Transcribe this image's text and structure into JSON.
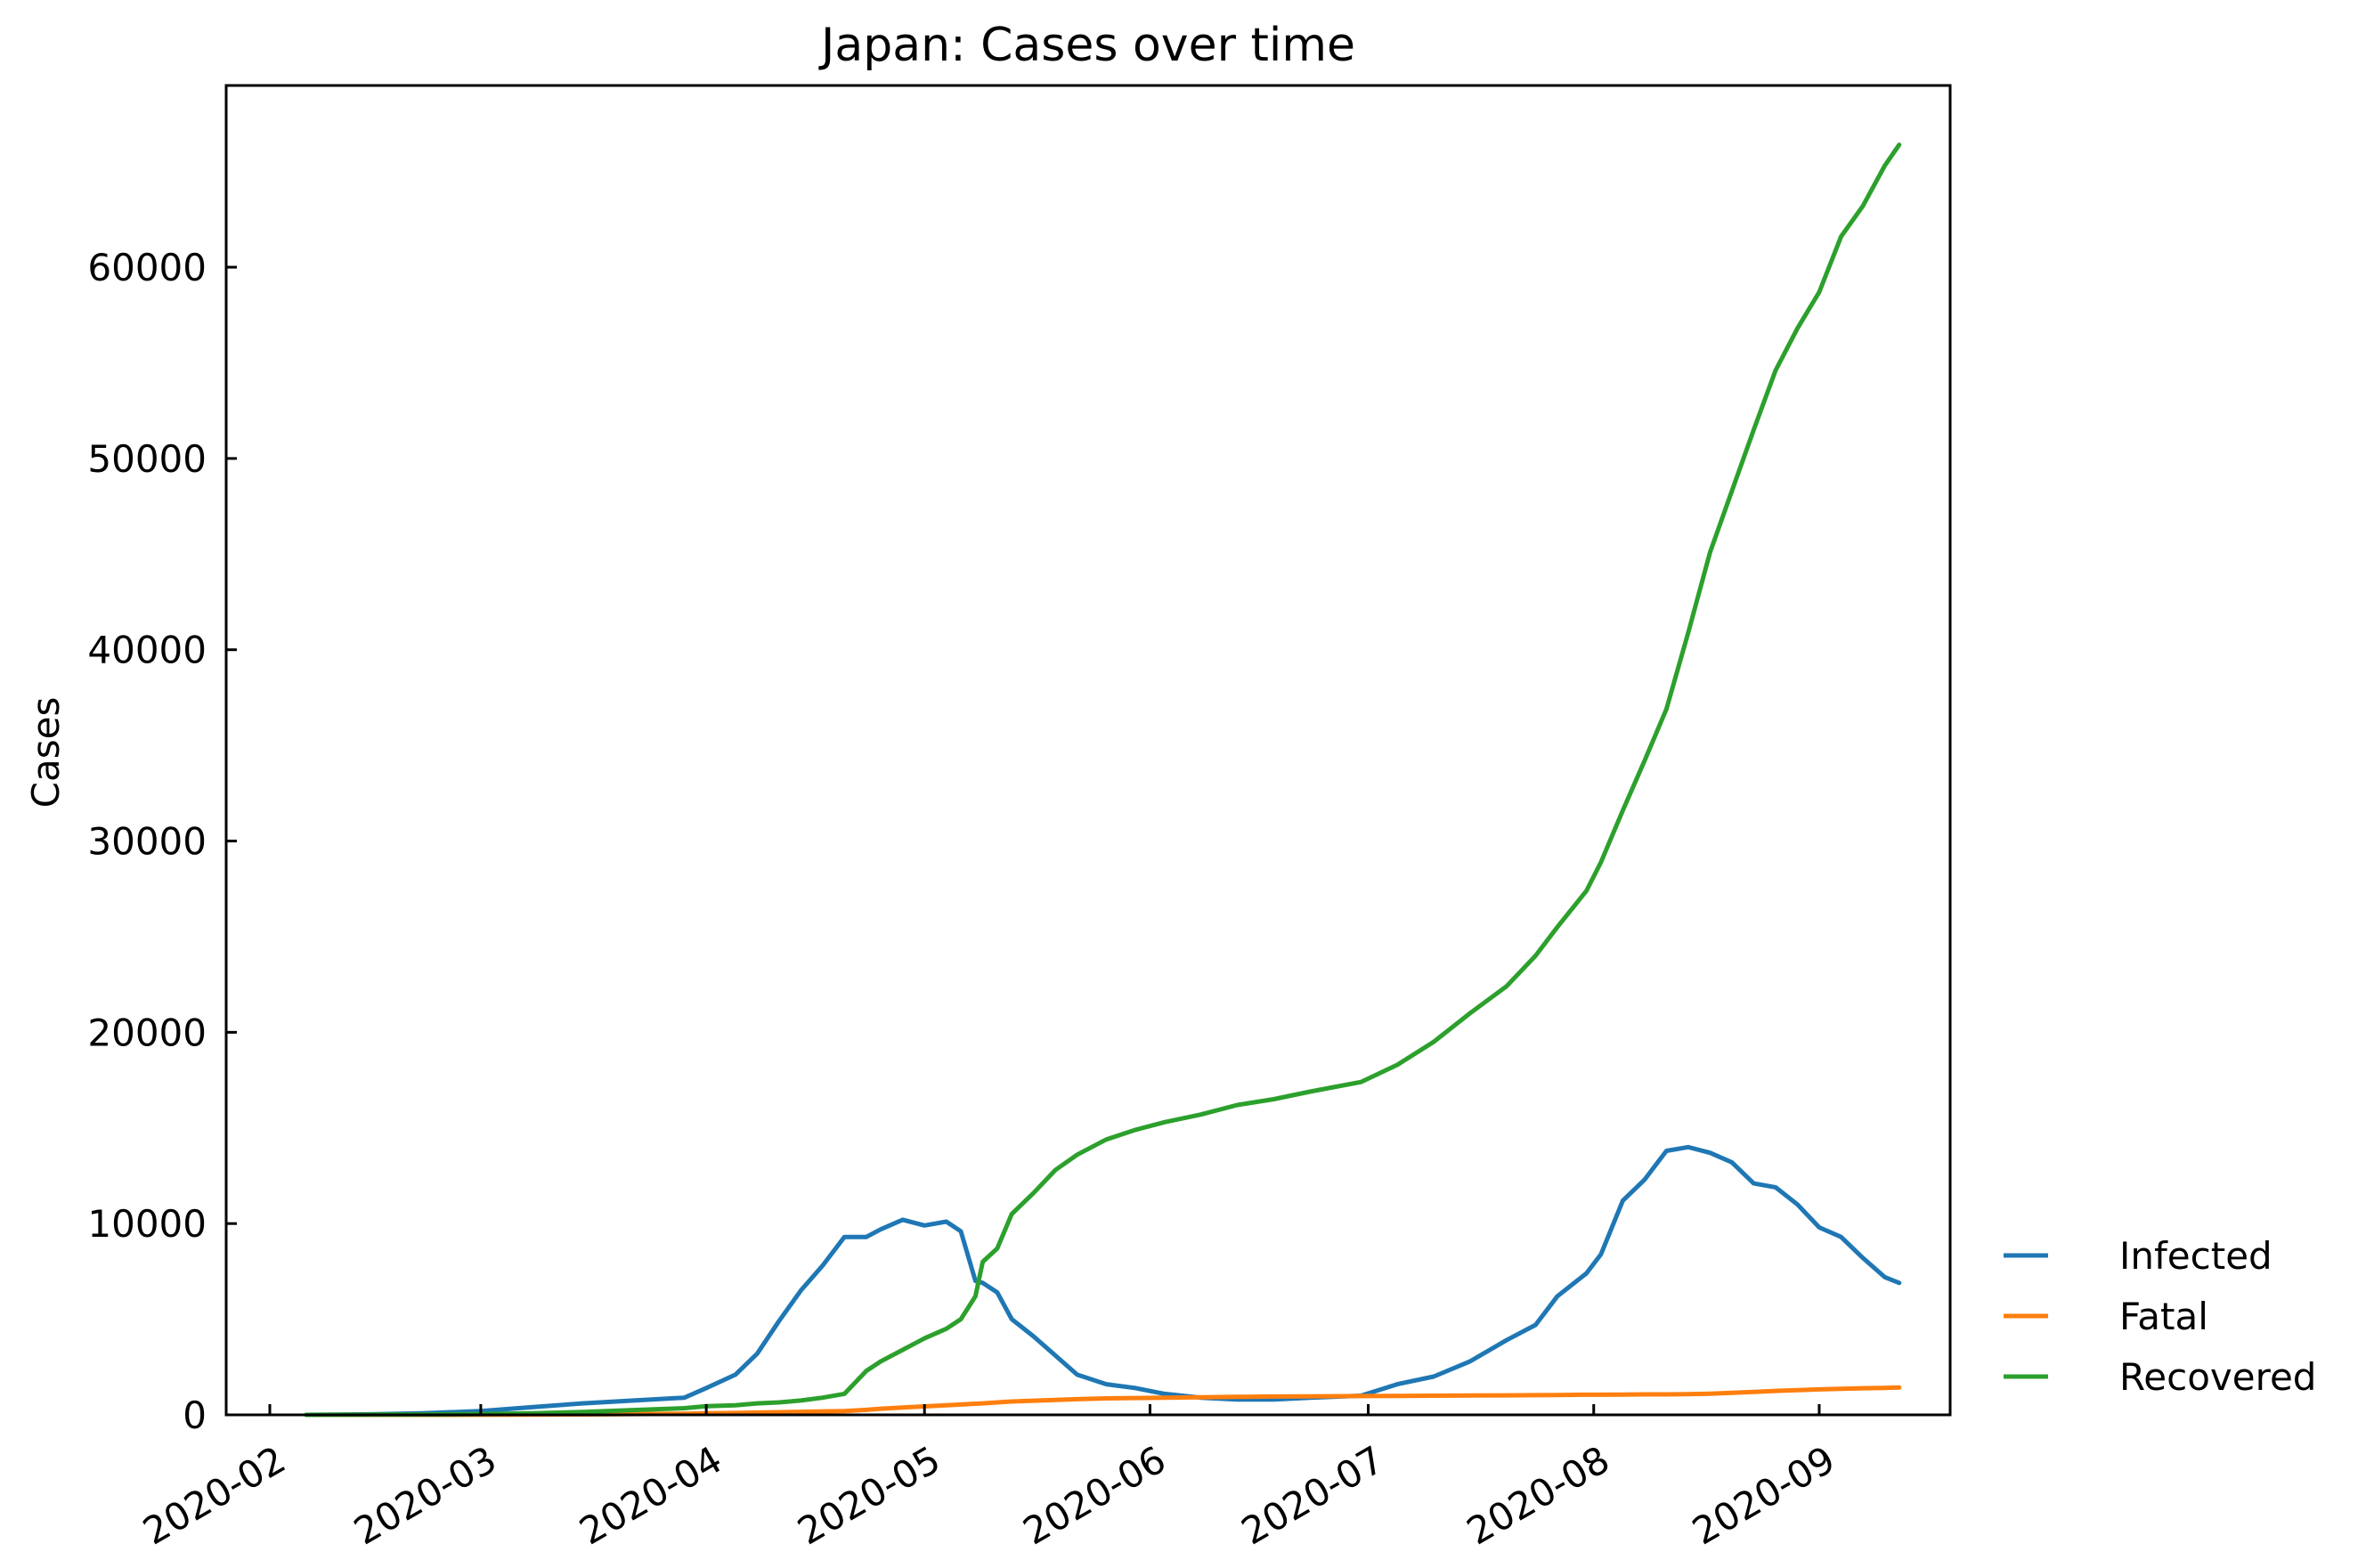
{
  "chart_data": {
    "type": "line",
    "title": "Japan: Cases over time",
    "xlabel": "",
    "ylabel": "Cases",
    "x_ticks": [
      "2020-02",
      "2020-03",
      "2020-04",
      "2020-05",
      "2020-06",
      "2020-07",
      "2020-08",
      "2020-09"
    ],
    "y_ticks": [
      0,
      10000,
      20000,
      30000,
      40000,
      50000,
      60000
    ],
    "xlim": [
      "2020-01-26",
      "2020-09-19"
    ],
    "ylim": [
      0,
      69500
    ],
    "grid": false,
    "legend_position": "outside-right-bottom",
    "x": [
      "2020-02-06",
      "2020-02-15",
      "2020-02-22",
      "2020-03-01",
      "2020-03-08",
      "2020-03-15",
      "2020-03-22",
      "2020-03-29",
      "2020-04-01",
      "2020-04-05",
      "2020-04-08",
      "2020-04-11",
      "2020-04-14",
      "2020-04-17",
      "2020-04-20",
      "2020-04-23",
      "2020-04-25",
      "2020-04-28",
      "2020-05-01",
      "2020-05-04",
      "2020-05-06",
      "2020-05-08",
      "2020-05-09",
      "2020-05-11",
      "2020-05-13",
      "2020-05-16",
      "2020-05-19",
      "2020-05-22",
      "2020-05-26",
      "2020-05-30",
      "2020-06-03",
      "2020-06-08",
      "2020-06-13",
      "2020-06-18",
      "2020-06-23",
      "2020-06-30",
      "2020-07-05",
      "2020-07-10",
      "2020-07-15",
      "2020-07-20",
      "2020-07-24",
      "2020-07-27",
      "2020-07-31",
      "2020-08-02",
      "2020-08-05",
      "2020-08-08",
      "2020-08-11",
      "2020-08-14",
      "2020-08-17",
      "2020-08-20",
      "2020-08-23",
      "2020-08-26",
      "2020-08-29",
      "2020-09-01",
      "2020-09-04",
      "2020-09-07",
      "2020-09-10",
      "2020-09-12"
    ],
    "series": [
      {
        "name": "Infected",
        "color": "#1f77b4",
        "values": [
          0,
          30,
          80,
          200,
          400,
          600,
          750,
          900,
          1400,
          2100,
          3200,
          4900,
          6500,
          7800,
          9300,
          9300,
          9700,
          10200,
          9900,
          10100,
          9600,
          7000,
          6900,
          6400,
          5000,
          4100,
          3100,
          2100,
          1600,
          1400,
          1100,
          900,
          800,
          800,
          900,
          1000,
          1600,
          2000,
          2800,
          3900,
          4700,
          6200,
          7400,
          8400,
          11200,
          12300,
          13800,
          14000,
          13700,
          13200,
          12100,
          11900,
          11000,
          9800,
          9300,
          8200,
          7200,
          6900
        ]
      },
      {
        "name": "Fatal",
        "color": "#ff7f0e",
        "values": [
          0,
          1,
          2,
          6,
          10,
          20,
          40,
          60,
          80,
          100,
          120,
          140,
          160,
          180,
          200,
          260,
          320,
          380,
          440,
          500,
          540,
          580,
          600,
          650,
          700,
          740,
          780,
          820,
          860,
          880,
          900,
          920,
          940,
          960,
          970,
          980,
          990,
          1000,
          1010,
          1020,
          1030,
          1040,
          1050,
          1050,
          1060,
          1070,
          1070,
          1080,
          1110,
          1150,
          1200,
          1250,
          1290,
          1330,
          1360,
          1390,
          1410,
          1430
        ]
      },
      {
        "name": "Recovered",
        "color": "#2ca02c",
        "values": [
          0,
          10,
          20,
          40,
          80,
          150,
          250,
          350,
          450,
          500,
          600,
          650,
          750,
          900,
          1100,
          2300,
          2800,
          3400,
          4000,
          4500,
          5000,
          6200,
          8000,
          8700,
          10500,
          11600,
          12800,
          13600,
          14400,
          14900,
          15300,
          15700,
          16200,
          16500,
          16900,
          17400,
          18300,
          19500,
          21000,
          22400,
          24000,
          25500,
          27400,
          28900,
          31600,
          34200,
          36900,
          40900,
          45100,
          48300,
          51500,
          54600,
          56800,
          58700,
          61600,
          63200,
          65300,
          66400
        ]
      }
    ]
  }
}
